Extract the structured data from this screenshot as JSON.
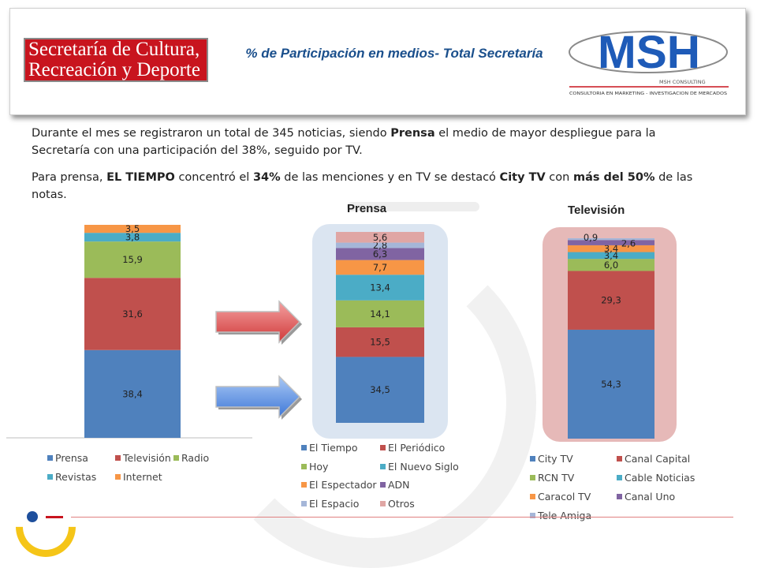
{
  "header": {
    "logo_left_line1": "Secretaría de Cultura,",
    "logo_left_line2": "Recreación y Deporte",
    "title": "% de Participación en medios- Total Secretaría",
    "logo_right_name": "MSH",
    "logo_right_sub": "MSH CONSULTING",
    "logo_right_tag": "CONSULTORIA EN MARKETING - INVESTIGACION DE MERCADOS"
  },
  "body": {
    "p1_a": "Durante el mes se registraron un total de 345 noticias, siendo ",
    "p1_b": "Prensa",
    "p1_c": " el medio de mayor despliegue para la Secretaría con una participación del 38%, seguido por TV.",
    "p2_a": "Para prensa, ",
    "p2_b": "EL TIEMPO",
    "p2_c": " concentró el ",
    "p2_d": "34%",
    "p2_e": " de las menciones y en TV se destacó ",
    "p2_f": "City TV",
    "p2_g": " con ",
    "p2_h": "más del 50%",
    "p2_i": " de las notas."
  },
  "colors": {
    "blue": "#4f81bd",
    "red": "#c0504d",
    "green": "#9bbb59",
    "teal": "#4bacc6",
    "orange": "#f79646",
    "purple": "#8064a2",
    "lightblue": "#a5b6d8",
    "pink": "#e0a6a4",
    "arrow_red": "#e06060",
    "arrow_blue": "#5a8ee0"
  },
  "chart_data": [
    {
      "type": "bar",
      "stacked": true,
      "title": "",
      "ylim": [
        0,
        100
      ],
      "categories": [
        ""
      ],
      "series": [
        {
          "name": "Prensa",
          "values": [
            38.4
          ],
          "label": "38,4",
          "color": "blue"
        },
        {
          "name": "Televisión",
          "values": [
            31.6
          ],
          "label": "31,6",
          "color": "red"
        },
        {
          "name": "Radio",
          "values": [
            15.9
          ],
          "label": "15,9",
          "color": "green"
        },
        {
          "name": "Revistas",
          "values": [
            3.8
          ],
          "label": "3,8",
          "color": "teal"
        },
        {
          "name": "Internet",
          "values": [
            3.5
          ],
          "label": "3,5",
          "color": "orange"
        }
      ],
      "legend_position": "bottom"
    },
    {
      "type": "bar",
      "stacked": true,
      "title": "Prensa",
      "ylim": [
        0,
        100
      ],
      "categories": [
        ""
      ],
      "series": [
        {
          "name": "El Tiempo",
          "values": [
            34.5
          ],
          "label": "34,5",
          "color": "blue"
        },
        {
          "name": "El Periódico",
          "values": [
            15.5
          ],
          "label": "15,5",
          "color": "red"
        },
        {
          "name": "Hoy",
          "values": [
            14.1
          ],
          "label": "14,1",
          "color": "green"
        },
        {
          "name": "El Nuevo Siglo",
          "values": [
            13.4
          ],
          "label": "13,4",
          "color": "teal"
        },
        {
          "name": "El Espectador",
          "values": [
            7.7
          ],
          "label": "7,7",
          "color": "orange"
        },
        {
          "name": "ADN",
          "values": [
            6.3
          ],
          "label": "6,3",
          "color": "purple"
        },
        {
          "name": "El Espacio",
          "values": [
            2.8
          ],
          "label": "2,8",
          "color": "lightblue"
        },
        {
          "name": "Otros",
          "values": [
            5.6
          ],
          "label": "5,6",
          "color": "pink"
        }
      ],
      "legend_position": "bottom"
    },
    {
      "type": "bar",
      "stacked": true,
      "title": "Televisión",
      "ylim": [
        0,
        100
      ],
      "categories": [
        ""
      ],
      "series": [
        {
          "name": "City TV",
          "values": [
            54.3
          ],
          "label": "54,3",
          "color": "blue"
        },
        {
          "name": "Canal Capital",
          "values": [
            29.3
          ],
          "label": "29,3",
          "color": "red"
        },
        {
          "name": "RCN TV",
          "values": [
            6.0
          ],
          "label": "6,0",
          "color": "green"
        },
        {
          "name": "Cable Noticias",
          "values": [
            3.4
          ],
          "label": "3,4",
          "color": "teal"
        },
        {
          "name": "Caracol TV",
          "values": [
            3.4
          ],
          "label": "3,4",
          "color": "orange"
        },
        {
          "name": "Canal Uno",
          "values": [
            2.6
          ],
          "label": "2,6",
          "color": "purple"
        },
        {
          "name": "Tele Amiga",
          "values": [
            0.9
          ],
          "label": "0,9",
          "color": "lightblue"
        }
      ],
      "legend_position": "bottom"
    }
  ]
}
